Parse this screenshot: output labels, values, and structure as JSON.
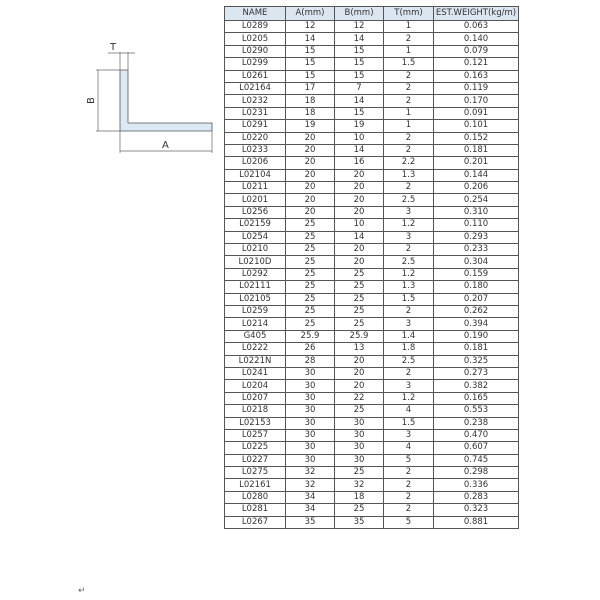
{
  "diagram": {
    "label_t": "T",
    "label_b": "B",
    "label_a": "A",
    "fill_color": "#dce9f5"
  },
  "table": {
    "headers": [
      "NAME",
      "A(mm)",
      "B(mm)",
      "T(mm)",
      "EST.WEIGHT(kg/m)"
    ],
    "header_bg": "#dce6f1",
    "rows": [
      [
        "L0289",
        "12",
        "12",
        "1",
        "0.063"
      ],
      [
        "L0205",
        "14",
        "14",
        "2",
        "0.140"
      ],
      [
        "L0290",
        "15",
        "15",
        "1",
        "0.079"
      ],
      [
        "L0299",
        "15",
        "15",
        "1.5",
        "0.121"
      ],
      [
        "L0261",
        "15",
        "15",
        "2",
        "0.163"
      ],
      [
        "L02164",
        "17",
        "7",
        "2",
        "0.119"
      ],
      [
        "L0232",
        "18",
        "14",
        "2",
        "0.170"
      ],
      [
        "L0231",
        "18",
        "15",
        "1",
        "0.091"
      ],
      [
        "L0291",
        "19",
        "19",
        "1",
        "0.101"
      ],
      [
        "L0220",
        "20",
        "10",
        "2",
        "0.152"
      ],
      [
        "L0233",
        "20",
        "14",
        "2",
        "0.181"
      ],
      [
        "L0206",
        "20",
        "16",
        "2.2",
        "0.201"
      ],
      [
        "L02104",
        "20",
        "20",
        "1.3",
        "0.144"
      ],
      [
        "L0211",
        "20",
        "20",
        "2",
        "0.206"
      ],
      [
        "L0201",
        "20",
        "20",
        "2.5",
        "0.254"
      ],
      [
        "L0256",
        "20",
        "20",
        "3",
        "0.310"
      ],
      [
        "L02159",
        "25",
        "10",
        "1.2",
        "0.110"
      ],
      [
        "L0254",
        "25",
        "14",
        "3",
        "0.293"
      ],
      [
        "L0210",
        "25",
        "20",
        "2",
        "0.233"
      ],
      [
        "L0210D",
        "25",
        "20",
        "2.5",
        "0.304"
      ],
      [
        "L0292",
        "25",
        "25",
        "1.2",
        "0.159"
      ],
      [
        "L02111",
        "25",
        "25",
        "1.3",
        "0.180"
      ],
      [
        "L02105",
        "25",
        "25",
        "1.5",
        "0.207"
      ],
      [
        "L0259",
        "25",
        "25",
        "2",
        "0.262"
      ],
      [
        "L0214",
        "25",
        "25",
        "3",
        "0.394"
      ],
      [
        "G405",
        "25.9",
        "25.9",
        "1.4",
        "0.190"
      ],
      [
        "L0222",
        "26",
        "13",
        "1.8",
        "0.181"
      ],
      [
        "L0221N",
        "28",
        "20",
        "2.5",
        "0.325"
      ],
      [
        "L0241",
        "30",
        "20",
        "2",
        "0.273"
      ],
      [
        "L0204",
        "30",
        "20",
        "3",
        "0.382"
      ],
      [
        "L0207",
        "30",
        "22",
        "1.2",
        "0.165"
      ],
      [
        "L0218",
        "30",
        "25",
        "4",
        "0.553"
      ],
      [
        "L02153",
        "30",
        "30",
        "1.5",
        "0.238"
      ],
      [
        "L0257",
        "30",
        "30",
        "3",
        "0.470"
      ],
      [
        "L0225",
        "30",
        "30",
        "4",
        "0.607"
      ],
      [
        "L0227",
        "30",
        "30",
        "5",
        "0.745"
      ],
      [
        "L0275",
        "32",
        "25",
        "2",
        "0.298"
      ],
      [
        "L02161",
        "32",
        "32",
        "2",
        "0.336"
      ],
      [
        "L0280",
        "34",
        "18",
        "2",
        "0.283"
      ],
      [
        "L0281",
        "34",
        "25",
        "2",
        "0.323"
      ],
      [
        "L0267",
        "35",
        "35",
        "5",
        "0.881"
      ]
    ]
  },
  "paragraph_mark": "↵"
}
